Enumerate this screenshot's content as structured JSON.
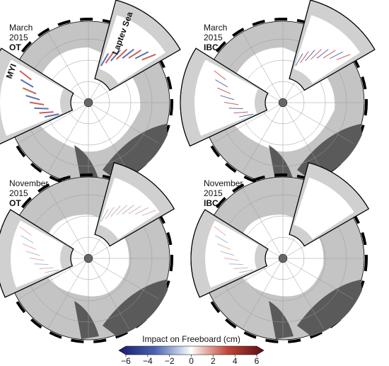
{
  "panels": [
    {
      "month": "March",
      "year": "2015",
      "method": "OT"
    },
    {
      "month": "March",
      "year": "2015",
      "method": "IBC"
    },
    {
      "month": "November",
      "year": "2015",
      "method": "OT"
    },
    {
      "month": "November",
      "year": "2015",
      "method": "IBC"
    }
  ],
  "annotations": [
    "MYI",
    "Laptev Sea"
  ],
  "colorbar": {
    "label": "Impact on Freeboard (cm)",
    "lim": [
      -6,
      6
    ],
    "ticks": [
      {
        "value": -6,
        "label": "−6"
      },
      {
        "value": -4,
        "label": "−4"
      },
      {
        "value": -2,
        "label": "−2"
      },
      0,
      2,
      4,
      6
    ]
  }
}
